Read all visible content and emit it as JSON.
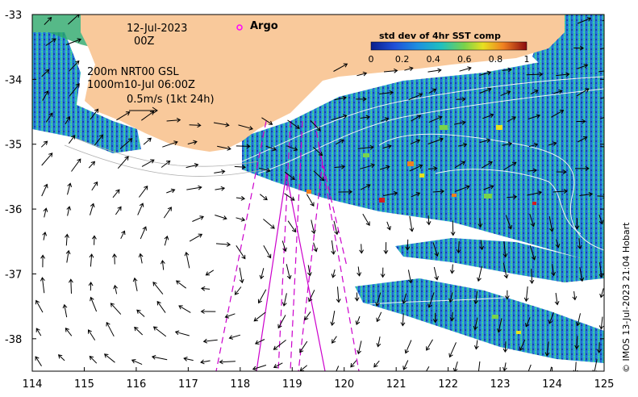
{
  "map": {
    "date_label": "12-Jul-2023",
    "time_label": "00Z",
    "argo_label": "Argo",
    "contour_label": "200m  NRT00 GSL",
    "contour_label_2": "1000m10-Jul 06:00Z",
    "velocity_scale_label": "0.5m/s (1kt 24h)",
    "colorbar": {
      "title": "std dev of 4hr SST comp",
      "ticks": [
        "0",
        "0.2",
        "0.4",
        "0.6",
        "0.8",
        "1"
      ],
      "range": [
        0,
        1
      ]
    },
    "credit": "© IMOS 13-Jul-2023 21:04 Hobart",
    "x_axis": {
      "ticks": [
        "114",
        "115",
        "116",
        "117",
        "118",
        "119",
        "120",
        "121",
        "122",
        "123",
        "124",
        "125"
      ],
      "range": [
        114,
        125
      ]
    },
    "y_axis": {
      "ticks": [
        "-33",
        "-34",
        "-35",
        "-36",
        "-37",
        "-38"
      ],
      "range": [
        -38.5,
        -33
      ]
    }
  },
  "colors": {
    "land": "#f9c99b",
    "argo_marker": "#ff00ff",
    "track_line": "#cc00cc",
    "contour": "#ffffff"
  }
}
